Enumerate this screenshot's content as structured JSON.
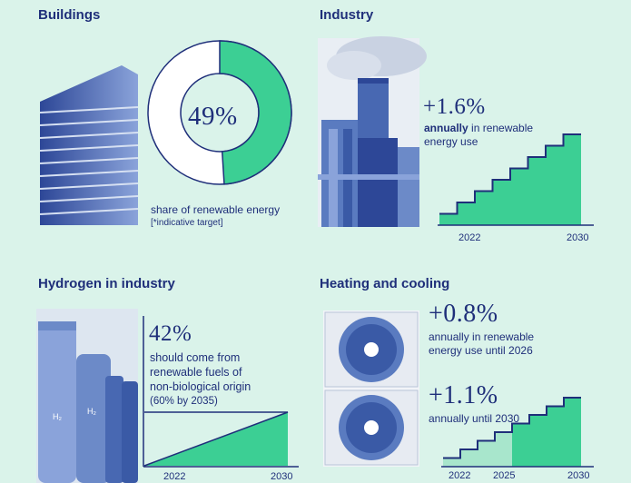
{
  "buildings": {
    "title": "Buildings",
    "value": "49%",
    "share": 0.49,
    "desc": "share of renewable energy",
    "note": "[*indicative target]"
  },
  "industry": {
    "title": "Industry",
    "value": "+1.6%",
    "desc_bold": "annually",
    "desc_rest": " in renewable",
    "desc_line2": "energy use",
    "x_start": "2022",
    "x_end": "2030",
    "steps": 8
  },
  "hydrogen": {
    "title": "Hydrogen in industry",
    "value": "42%",
    "desc": [
      "should come from",
      "renewable fuels of",
      "non-biological origin",
      "(60% by 2035)"
    ],
    "x_start": "2022",
    "x_end": "2030"
  },
  "heating": {
    "title": "Heating and cooling",
    "value1": "+0.8%",
    "desc1": [
      "annually in renewable",
      "energy use until 2026"
    ],
    "value2": "+1.1%",
    "desc2": "annually until 2030",
    "x_labels": [
      "2022",
      "2025",
      "2030"
    ],
    "steps_before_2026": 4,
    "steps_after_2026": 4
  },
  "colors": {
    "background": "#daf3ea",
    "navy": "#1f2f7a",
    "green": "#3ccf94",
    "light_green": "#a8e6cc",
    "photo_tint": "#5a7bc0"
  }
}
